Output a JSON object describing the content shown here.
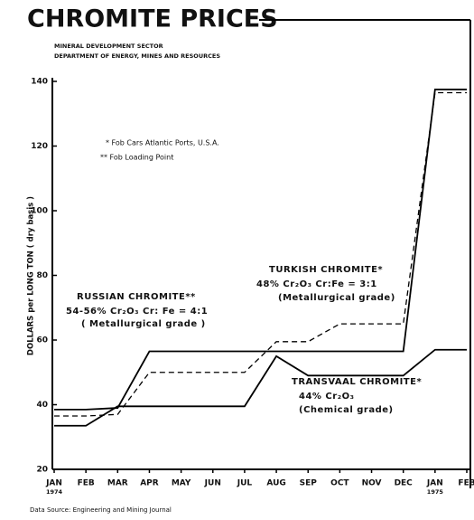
{
  "chart_data": {
    "type": "line",
    "title": "CHROMITE PRICES",
    "subtitle": [
      "MINERAL DEVELOPMENT SECTOR",
      "DEPARTMENT OF ENERGY, MINES AND RESOURCES"
    ],
    "y_label": "DOLLARS per LONG TON  ( dry basis )",
    "notes": [
      "* Fob Cars Atlantic Ports, U.S.A.",
      "** Fob Loading Point"
    ],
    "source": "Data Source: Engineering and Mining Journal",
    "x": [
      0,
      1,
      2,
      3,
      4,
      5,
      6,
      7,
      8,
      9,
      10,
      11,
      12,
      13
    ],
    "xlim": [
      0,
      13
    ],
    "xticks": [
      {
        "value": 0,
        "label": "JAN"
      },
      {
        "value": 1,
        "label": "FEB"
      },
      {
        "value": 2,
        "label": "MAR"
      },
      {
        "value": 3,
        "label": "APR"
      },
      {
        "value": 4,
        "label": "MAY"
      },
      {
        "value": 5,
        "label": "JUN"
      },
      {
        "value": 6,
        "label": "JUL"
      },
      {
        "value": 7,
        "label": "AUG"
      },
      {
        "value": 8,
        "label": "SEP"
      },
      {
        "value": 9,
        "label": "OCT"
      },
      {
        "value": 10,
        "label": "NOV"
      },
      {
        "value": 11,
        "label": "DEC"
      },
      {
        "value": 12,
        "label": "JAN"
      },
      {
        "value": 13,
        "label": "FEB"
      }
    ],
    "years": [
      {
        "value": 0,
        "label": "1974"
      },
      {
        "value": 12,
        "label": "1975"
      }
    ],
    "ylim": [
      20,
      140
    ],
    "yticks": [
      20,
      40,
      60,
      80,
      100,
      120,
      140
    ],
    "series": [
      {
        "name": "RUSSIAN CHROMITE**",
        "description": [
          "54-56% Cr₂O₃ Cr: Fe = 4:1",
          "( Metallurgical grade )"
        ],
        "color": "#000000",
        "dashed": false,
        "values": [
          38.5,
          38.5,
          39,
          56.5,
          56.5,
          56.5,
          56.5,
          56.5,
          56.5,
          56.5,
          56.5,
          56.5,
          137.5,
          137.5
        ]
      },
      {
        "name": "TURKISH CHROMITE*",
        "description": [
          "48% Cr₂O₃ Cr:Fe = 3:1",
          "(Metallurgical grade)"
        ],
        "color": "#000000",
        "dashed": true,
        "values": [
          36.5,
          36.5,
          37,
          50,
          50,
          50,
          50,
          59.5,
          59.5,
          65,
          65,
          65,
          136.5,
          136.5
        ]
      },
      {
        "name": "TRANSVAAL CHROMITE*",
        "description": [
          "44% Cr₂O₃",
          "(Chemical grade)"
        ],
        "color": "#000000",
        "dashed": false,
        "values": [
          33.5,
          33.5,
          39.5,
          39.5,
          39.5,
          39.5,
          39.5,
          55,
          49,
          49,
          49,
          49,
          57,
          57
        ]
      }
    ]
  }
}
